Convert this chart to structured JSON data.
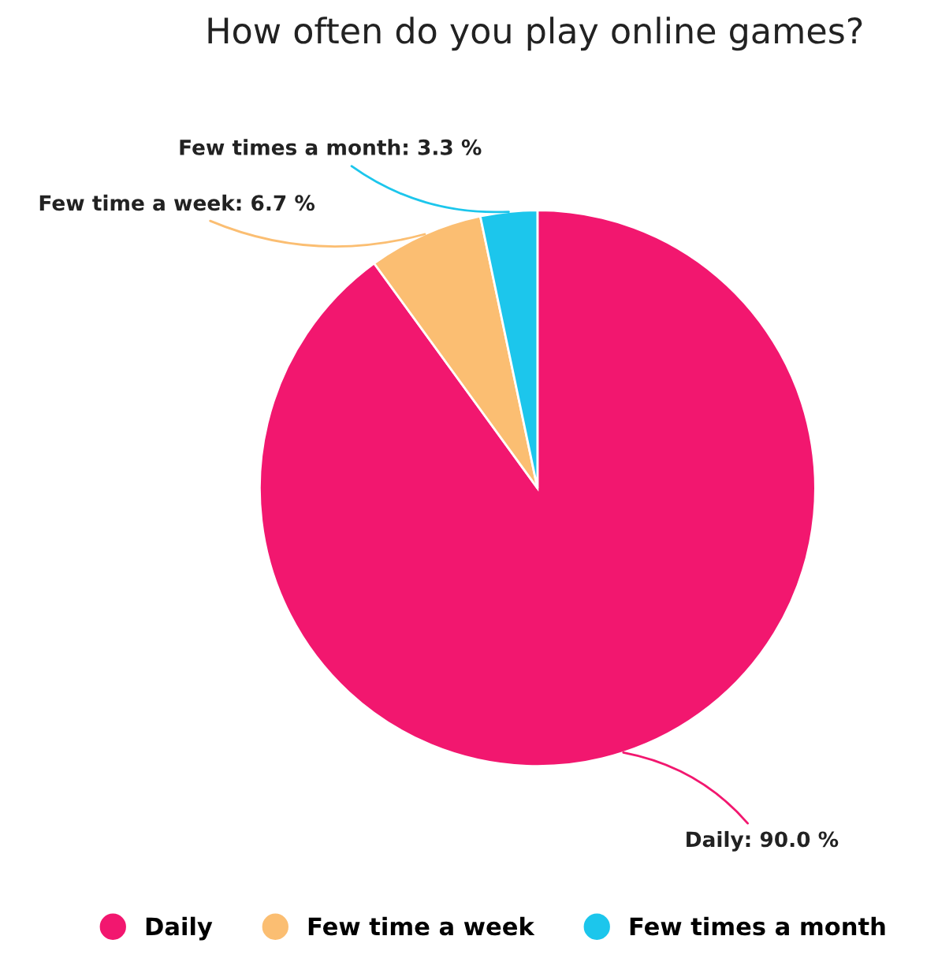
{
  "chart_data": {
    "type": "pie",
    "title": "How often do you play online games?",
    "categories": [
      "Daily",
      "Few time a week",
      "Few times a month"
    ],
    "values": [
      90.0,
      6.7,
      3.3
    ],
    "colors": [
      "#f2176f",
      "#fbbe72",
      "#1cc6ec"
    ],
    "value_labels": [
      "Daily: 90.0 %",
      "Few time a week: 6.7 %",
      "Few times a month: 3.3 %"
    ],
    "legend": "bottom"
  }
}
